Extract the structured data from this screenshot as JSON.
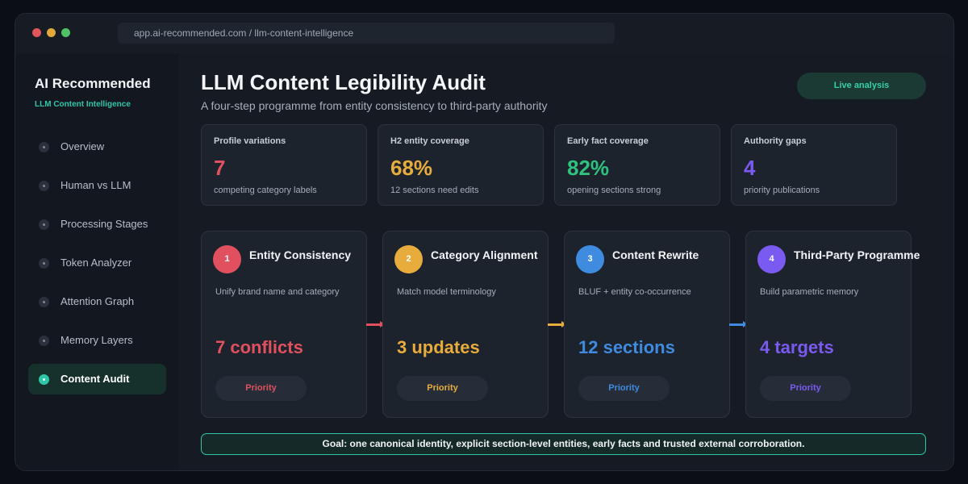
{
  "browser": {
    "url": "app.ai-recommended.com / llm-content-intelligence"
  },
  "sidebar": {
    "brand": "AI Recommended",
    "subtitle": "LLM Content Intelligence",
    "items": [
      {
        "label": "Overview"
      },
      {
        "label": "Human vs LLM"
      },
      {
        "label": "Processing Stages"
      },
      {
        "label": "Token Analyzer"
      },
      {
        "label": "Attention Graph"
      },
      {
        "label": "Memory Layers"
      },
      {
        "label": "Content Audit",
        "active": true
      }
    ]
  },
  "header": {
    "title": "LLM Content Legibility Audit",
    "subtitle": "A four-step programme from entity consistency to third-party authority",
    "live_label": "Live analysis"
  },
  "stats": [
    {
      "label": "Profile variations",
      "value": "7",
      "note": "competing category labels",
      "color": "#e0505e"
    },
    {
      "label": "H2 entity coverage",
      "value": "68%",
      "note": "12 sections need edits",
      "color": "#e8ac3c"
    },
    {
      "label": "Early fact coverage",
      "value": "82%",
      "note": "opening sections strong",
      "color": "#2ec27e"
    },
    {
      "label": "Authority gaps",
      "value": "4",
      "note": "priority publications",
      "color": "#7a5af0"
    }
  ],
  "steps": [
    {
      "number": "1",
      "title": "Entity Consistency",
      "desc": "Unify brand name and category",
      "metric": "7 conflicts",
      "pill": "Priority",
      "color": "#e0505e"
    },
    {
      "number": "2",
      "title": "Category Alignment",
      "desc": "Match model terminology",
      "metric": "3 updates",
      "pill": "Priority",
      "color": "#e8ac3c"
    },
    {
      "number": "3",
      "title": "Content Rewrite",
      "desc": "BLUF + entity co-occurrence",
      "metric": "12 sections",
      "pill": "Priority",
      "color": "#3f8be0"
    },
    {
      "number": "4",
      "title": "Third-Party Programme",
      "desc": "Build parametric memory",
      "metric": "4 targets",
      "pill": "Priority",
      "color": "#7a5af0"
    }
  ],
  "goal": "Goal: one canonical identity, explicit section-level entities, early facts and trusted external corroboration."
}
